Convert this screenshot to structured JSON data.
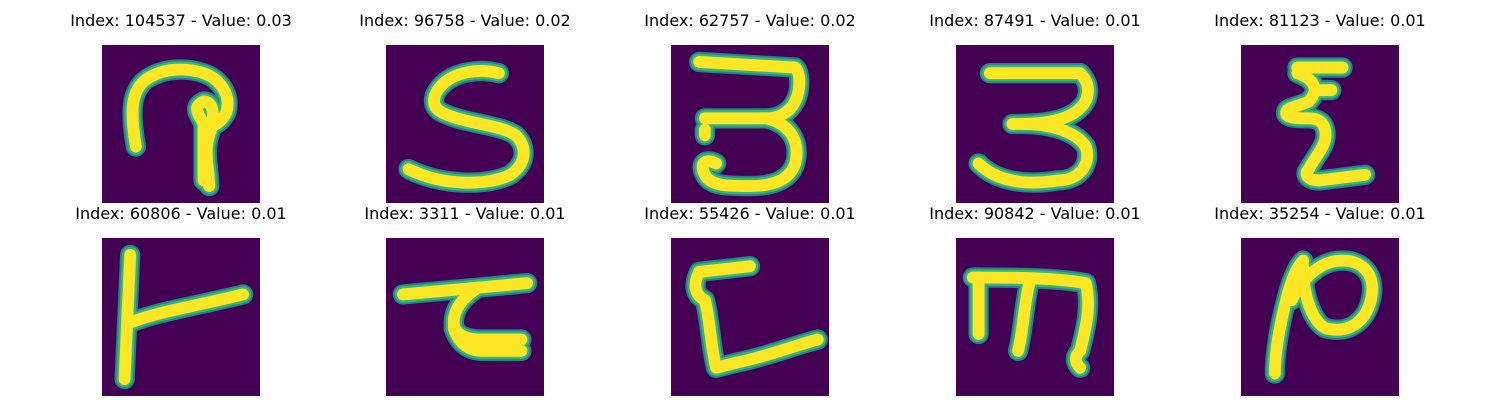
{
  "colors": {
    "background": "#440154",
    "stroke_outer": "#26828e",
    "stroke_mid": "#35b779",
    "stroke_inner": "#fde725"
  },
  "panels": [
    {
      "title": "Index: 104537 - Value: 0.03",
      "glyph": "handwritten-character-image"
    },
    {
      "title": "Index: 96758 - Value: 0.02",
      "glyph": "handwritten-character-image"
    },
    {
      "title": "Index: 62757 - Value: 0.02",
      "glyph": "handwritten-character-image"
    },
    {
      "title": "Index: 87491 - Value: 0.01",
      "glyph": "handwritten-character-image"
    },
    {
      "title": "Index: 81123 - Value: 0.01",
      "glyph": "handwritten-character-image"
    },
    {
      "title": "Index: 60806 - Value: 0.01",
      "glyph": "handwritten-character-image"
    },
    {
      "title": "Index: 3311 - Value: 0.01",
      "glyph": "handwritten-character-image"
    },
    {
      "title": "Index: 55426 - Value: 0.01",
      "glyph": "handwritten-character-image"
    },
    {
      "title": "Index: 90842 - Value: 0.01",
      "glyph": "handwritten-character-image"
    },
    {
      "title": "Index: 35254 - Value: 0.01",
      "glyph": "handwritten-character-image"
    }
  ]
}
